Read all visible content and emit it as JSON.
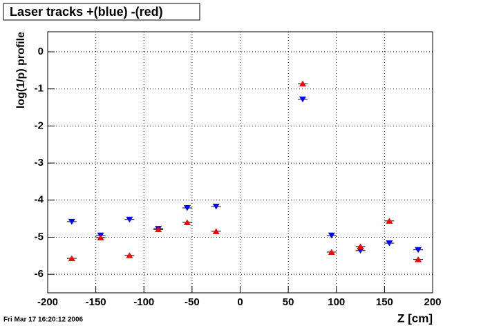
{
  "chart_data": {
    "type": "scatter",
    "title": "Laser tracks +(blue) -(red)",
    "x_label": "Z [cm]",
    "y_label": "log(1/p) profile",
    "timestamp": "Fri Mar 17 16:20:12 2006",
    "x": [
      -175,
      -145,
      -115,
      -85,
      -55,
      -25,
      65,
      95,
      125,
      155,
      185
    ],
    "series": [
      {
        "color": "#0000ff",
        "marker": "triangle-down",
        "values": [
          -4.58,
          -4.95,
          -4.52,
          -4.77,
          -4.21,
          -4.17,
          -1.28,
          -4.95,
          -5.36,
          -5.16,
          -5.34
        ]
      },
      {
        "color": "#ff0000",
        "marker": "triangle-up",
        "values": [
          -5.57,
          -5.01,
          -5.49,
          -4.79,
          -4.6,
          -4.84,
          -0.86,
          -5.4,
          -5.25,
          -4.56,
          -5.6
        ]
      }
    ],
    "xlim": [
      -200,
      200
    ],
    "ylim": [
      -6.5,
      0.54
    ],
    "xticks": [
      -200,
      -150,
      -100,
      -50,
      0,
      50,
      100,
      150,
      200
    ],
    "yticks": [
      -6,
      -5,
      -4,
      -3,
      -2,
      -1,
      0
    ],
    "grid": true
  }
}
